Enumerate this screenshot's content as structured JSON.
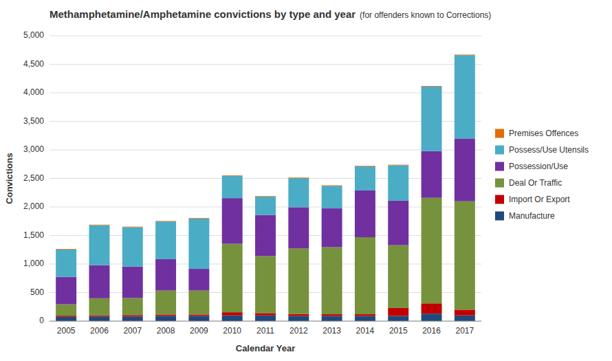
{
  "chart_data": {
    "type": "bar",
    "stacked": true,
    "title": "Methamphetamine/Amphetamine convictions by type and year",
    "subtitle": "(for offenders known to Corrections)",
    "x_label": "Calendar Year",
    "y_label": "Convictions",
    "categories": [
      "2005",
      "2006",
      "2007",
      "2008",
      "2009",
      "2010",
      "2011",
      "2012",
      "2013",
      "2014",
      "2015",
      "2016",
      "2017"
    ],
    "series": [
      {
        "name": "Manufacture",
        "color": "#1F497D",
        "values": [
          75,
          80,
          80,
          90,
          90,
          100,
          100,
          90,
          90,
          90,
          90,
          130,
          100
        ]
      },
      {
        "name": "Import Or Export",
        "color": "#C00000",
        "values": [
          20,
          20,
          25,
          25,
          25,
          55,
          40,
          35,
          30,
          30,
          140,
          180,
          100
        ]
      },
      {
        "name": "Deal Or Traffic",
        "color": "#76923C",
        "values": [
          200,
          300,
          300,
          420,
          420,
          1200,
          1000,
          1150,
          1175,
          1350,
          1100,
          1850,
          1900
        ]
      },
      {
        "name": "Possession/Use",
        "color": "#7030A0",
        "values": [
          480,
          580,
          550,
          550,
          380,
          800,
          720,
          720,
          680,
          820,
          780,
          820,
          1100
        ]
      },
      {
        "name": "Possess/Use Utensils",
        "color": "#4BACC6",
        "values": [
          480,
          700,
          690,
          660,
          880,
          390,
          320,
          510,
          395,
          420,
          620,
          1130,
          1460
        ]
      },
      {
        "name": "Premises Offences",
        "color": "#E36C09",
        "values": [
          10,
          10,
          10,
          10,
          10,
          10,
          10,
          10,
          10,
          10,
          10,
          10,
          10
        ]
      }
    ],
    "ylim": [
      0,
      5000
    ],
    "yticks": [
      0,
      500,
      {
        "value": 1000,
        "label": "1,000"
      },
      {
        "value": 1500,
        "label": "1,500"
      },
      {
        "value": 2000,
        "label": "2,000"
      },
      {
        "value": 2500,
        "label": "2,500"
      },
      {
        "value": 3000,
        "label": "3,000"
      },
      {
        "value": 3500,
        "label": "3,500"
      },
      {
        "value": 4000,
        "label": "4,000"
      },
      {
        "value": 4500,
        "label": "4,500"
      },
      {
        "value": 5000,
        "label": "5,000"
      }
    ],
    "grid": true,
    "legend": "right"
  }
}
